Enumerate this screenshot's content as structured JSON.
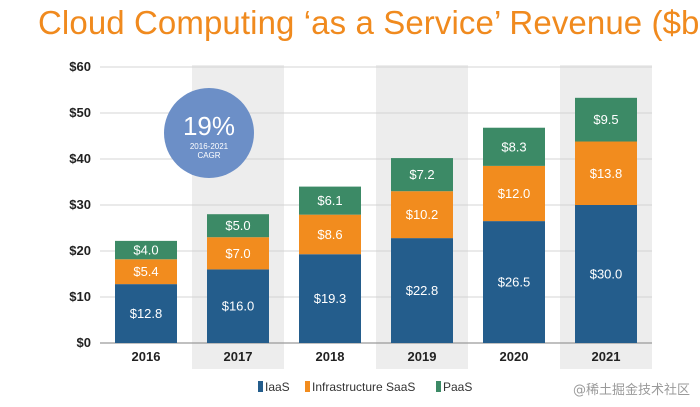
{
  "chart_data": {
    "type": "bar",
    "stacked": true,
    "title": "Cloud Computing ‘as a Service’ Revenue ($bn)",
    "xlabel": "",
    "ylabel": "",
    "ylim": [
      0,
      60
    ],
    "yticks": [
      0,
      10,
      20,
      30,
      40,
      50,
      60
    ],
    "ytick_labels": [
      "$0",
      "$10",
      "$20",
      "$30",
      "$40",
      "$50",
      "$60"
    ],
    "categories": [
      "2016",
      "2017",
      "2018",
      "2019",
      "2020",
      "2021"
    ],
    "series": [
      {
        "name": "IaaS",
        "color": "#245D8C",
        "values": [
          12.8,
          16.0,
          19.3,
          22.8,
          26.5,
          30.0
        ],
        "labels": [
          "$12.8",
          "$16.0",
          "$19.3",
          "$22.8",
          "$26.5",
          "$30.0"
        ]
      },
      {
        "name": "Infrastructure SaaS",
        "color": "#F28C1E",
        "values": [
          5.4,
          7.0,
          8.6,
          10.2,
          12.0,
          13.8
        ],
        "labels": [
          "$5.4",
          "$7.0",
          "$8.6",
          "$10.2",
          "$12.0",
          "$13.8"
        ]
      },
      {
        "name": "PaaS",
        "color": "#3C8A66",
        "values": [
          4.0,
          5.0,
          6.1,
          7.2,
          8.3,
          9.5
        ],
        "labels": [
          "$4.0",
          "$5.0",
          "$6.1",
          "$7.2",
          "$8.3",
          "$9.5"
        ]
      }
    ],
    "annotation": {
      "value": "19%",
      "caption_line1": "2016-2021",
      "caption_line2": "CAGR",
      "color": "#6C8FC7"
    },
    "legend_position": "bottom-center"
  },
  "watermark": "@稀土掘金技术社区"
}
